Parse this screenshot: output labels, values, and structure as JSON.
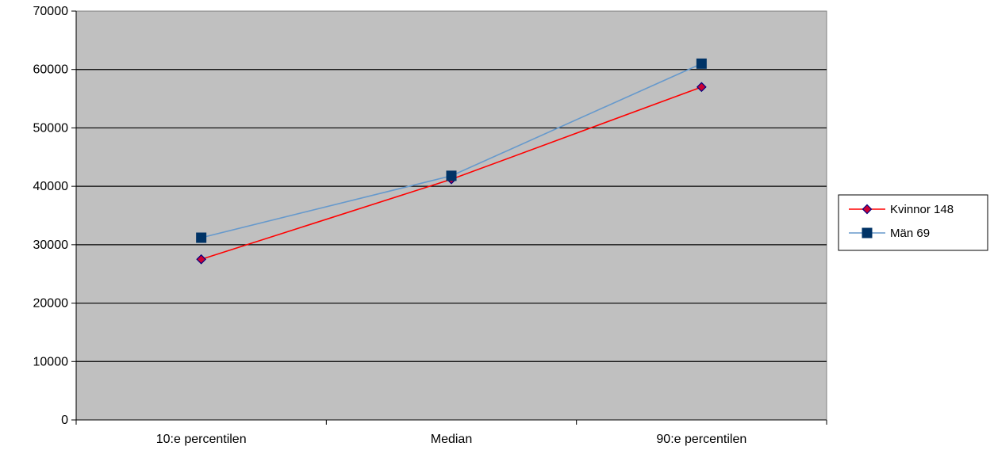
{
  "chart_data": {
    "type": "line",
    "categories": [
      "10:e percentilen",
      "Median",
      "90:e percentilen"
    ],
    "series": [
      {
        "name": "Kvinnor 148",
        "values": [
          27500,
          41200,
          57000
        ],
        "color": "#ff0000",
        "marker": "diamond",
        "marker_fill": "#cc0033",
        "marker_stroke": "#000080"
      },
      {
        "name": "Män 69",
        "values": [
          31200,
          41800,
          61000
        ],
        "color": "#6699cc",
        "marker": "square",
        "marker_fill": "#003366",
        "marker_stroke": "#003366"
      }
    ],
    "ylim": [
      0,
      70000
    ],
    "yticks": [
      0,
      10000,
      20000,
      30000,
      40000,
      50000,
      60000,
      70000
    ],
    "grid": true,
    "plot_background": "#c0c0c0",
    "legend_position": "right"
  }
}
